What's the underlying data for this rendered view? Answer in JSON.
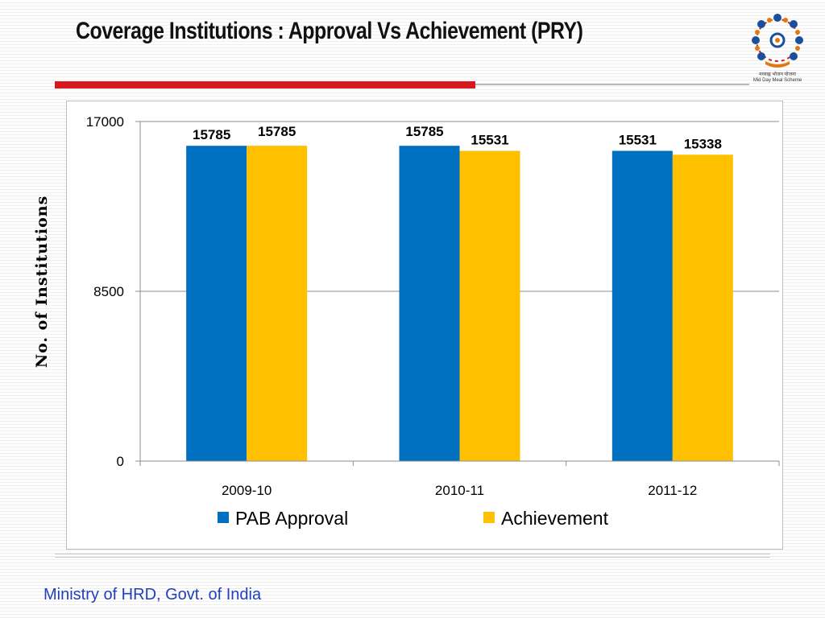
{
  "slide": {
    "title": "Coverage Institutions : Approval Vs Achievement (PRY)",
    "footer": "Ministry of HRD, Govt. of India",
    "logo": {
      "icon": "mid-day-meal-logo",
      "caption_hindi": "मध्याह्न भोजन योजना",
      "caption_english": "Mid Day Meal Scheme"
    }
  },
  "colors": {
    "title_accent": "#d7181f",
    "footer_text": "#1f3fbf"
  },
  "chart_data": {
    "type": "bar",
    "title": "",
    "xlabel": "",
    "ylabel": "No. of Institutions",
    "categories": [
      "2009-10",
      "2010-11",
      "2011-12"
    ],
    "series": [
      {
        "name": "PAB Approval",
        "values": [
          15785,
          15785,
          15531
        ],
        "color": "#0070c0"
      },
      {
        "name": "Achievement",
        "values": [
          15785,
          15531,
          15338
        ],
        "color": "#ffc000"
      }
    ],
    "data_labels": [
      [
        "15785",
        "15785",
        "15531"
      ],
      [
        "15785",
        "15531",
        "15338"
      ]
    ],
    "ylim": [
      0,
      17000
    ],
    "yticks": [
      0,
      8500,
      17000
    ],
    "ytick_labels": [
      "0",
      "8500",
      "17000"
    ],
    "grid": true,
    "legend_position": "bottom"
  }
}
